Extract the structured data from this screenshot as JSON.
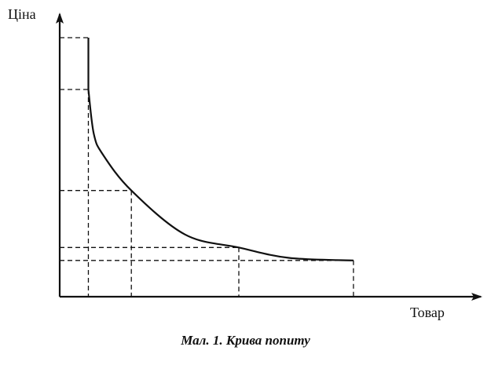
{
  "caption": "Мал. 1. Крива попиту",
  "chart_data": {
    "type": "line",
    "title": "",
    "xlabel": "Товар",
    "ylabel": "Ціна",
    "grid": false,
    "legend": "none",
    "xlim": [
      0,
      100
    ],
    "ylim": [
      0,
      100
    ],
    "axis_ticks": "none (unlabeled axes)",
    "series": [
      {
        "x": [
          8,
          8,
          9.5,
          12,
          20,
          35,
          50,
          64,
          82
        ],
        "y": [
          100,
          80,
          63,
          55,
          41,
          24,
          19,
          15,
          14
        ]
      }
    ],
    "reference_points": [
      {
        "x": 8,
        "y": 100
      },
      {
        "x": 8,
        "y": 80
      },
      {
        "x": 20,
        "y": 41
      },
      {
        "x": 50,
        "y": 19
      },
      {
        "x": 82,
        "y": 14
      }
    ]
  }
}
